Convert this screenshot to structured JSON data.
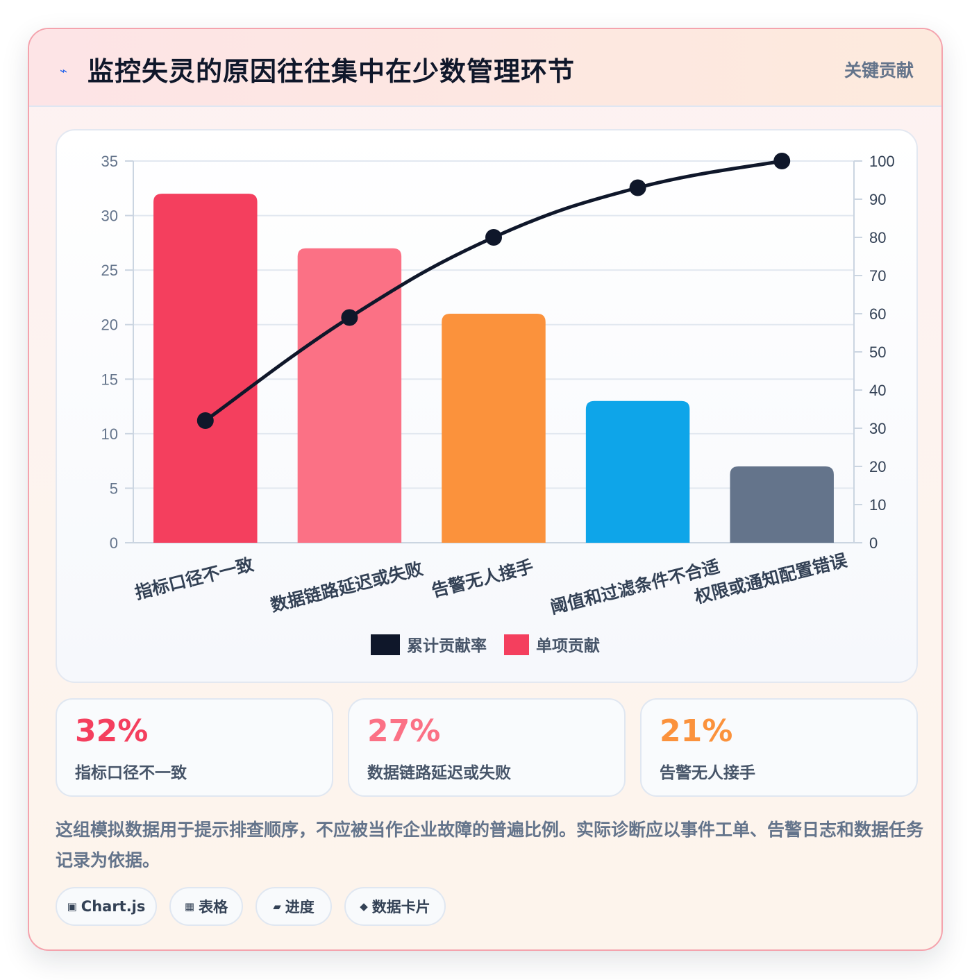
{
  "header": {
    "icon": "lightning-icon",
    "title": "监控失灵的原因往往集中在少数管理环节",
    "tag": "关键贡献"
  },
  "chart_data": {
    "type": "bar",
    "categories": [
      "指标口径不一致",
      "数据链路延迟或失败",
      "告警无人接手",
      "阈值和过滤条件不合适",
      "权限或通知配置错误"
    ],
    "series": [
      {
        "name": "单项贡献",
        "type": "bar",
        "axis": "left",
        "values": [
          32,
          27,
          21,
          13,
          7
        ],
        "colors": [
          "#f43f5e",
          "#fb7185",
          "#fb923c",
          "#0ea5e9",
          "#64748b"
        ]
      },
      {
        "name": "累计贡献率",
        "type": "line",
        "axis": "right",
        "values": [
          32,
          59,
          80,
          93,
          100
        ],
        "color": "#0f172a"
      }
    ],
    "ylim": [
      0,
      35
    ],
    "yticks": [
      0,
      5,
      10,
      15,
      20,
      25,
      30,
      35
    ],
    "y2lim": [
      0,
      100
    ],
    "y2ticks": [
      0,
      10,
      20,
      30,
      40,
      50,
      60,
      70,
      80,
      90,
      100
    ],
    "legend": [
      {
        "label": "累计贡献率",
        "color": "#0f172a"
      },
      {
        "label": "单项贡献",
        "color": "#f43f5e"
      }
    ],
    "legend_position": "bottom",
    "grid": true
  },
  "stats": [
    {
      "value": "32%",
      "label": "指标口径不一致",
      "color": "#f43f5e"
    },
    {
      "value": "27%",
      "label": "数据链路延迟或失败",
      "color": "#fb7185"
    },
    {
      "value": "21%",
      "label": "告警无人接手",
      "color": "#fb923c"
    }
  ],
  "note": "这组模拟数据用于提示排查顺序，不应被当作企业故障的普遍比例。实际诊断应以事件工单、告警日志和数据任务记录为依据。",
  "chips": [
    {
      "icon": "chart-icon",
      "glyph": "▣",
      "label": "Chart.js"
    },
    {
      "icon": "table-icon",
      "glyph": "▦",
      "label": "表格"
    },
    {
      "icon": "progress-icon",
      "glyph": "▰",
      "label": "进度"
    },
    {
      "icon": "card-icon",
      "glyph": "◆",
      "label": "数据卡片"
    }
  ]
}
